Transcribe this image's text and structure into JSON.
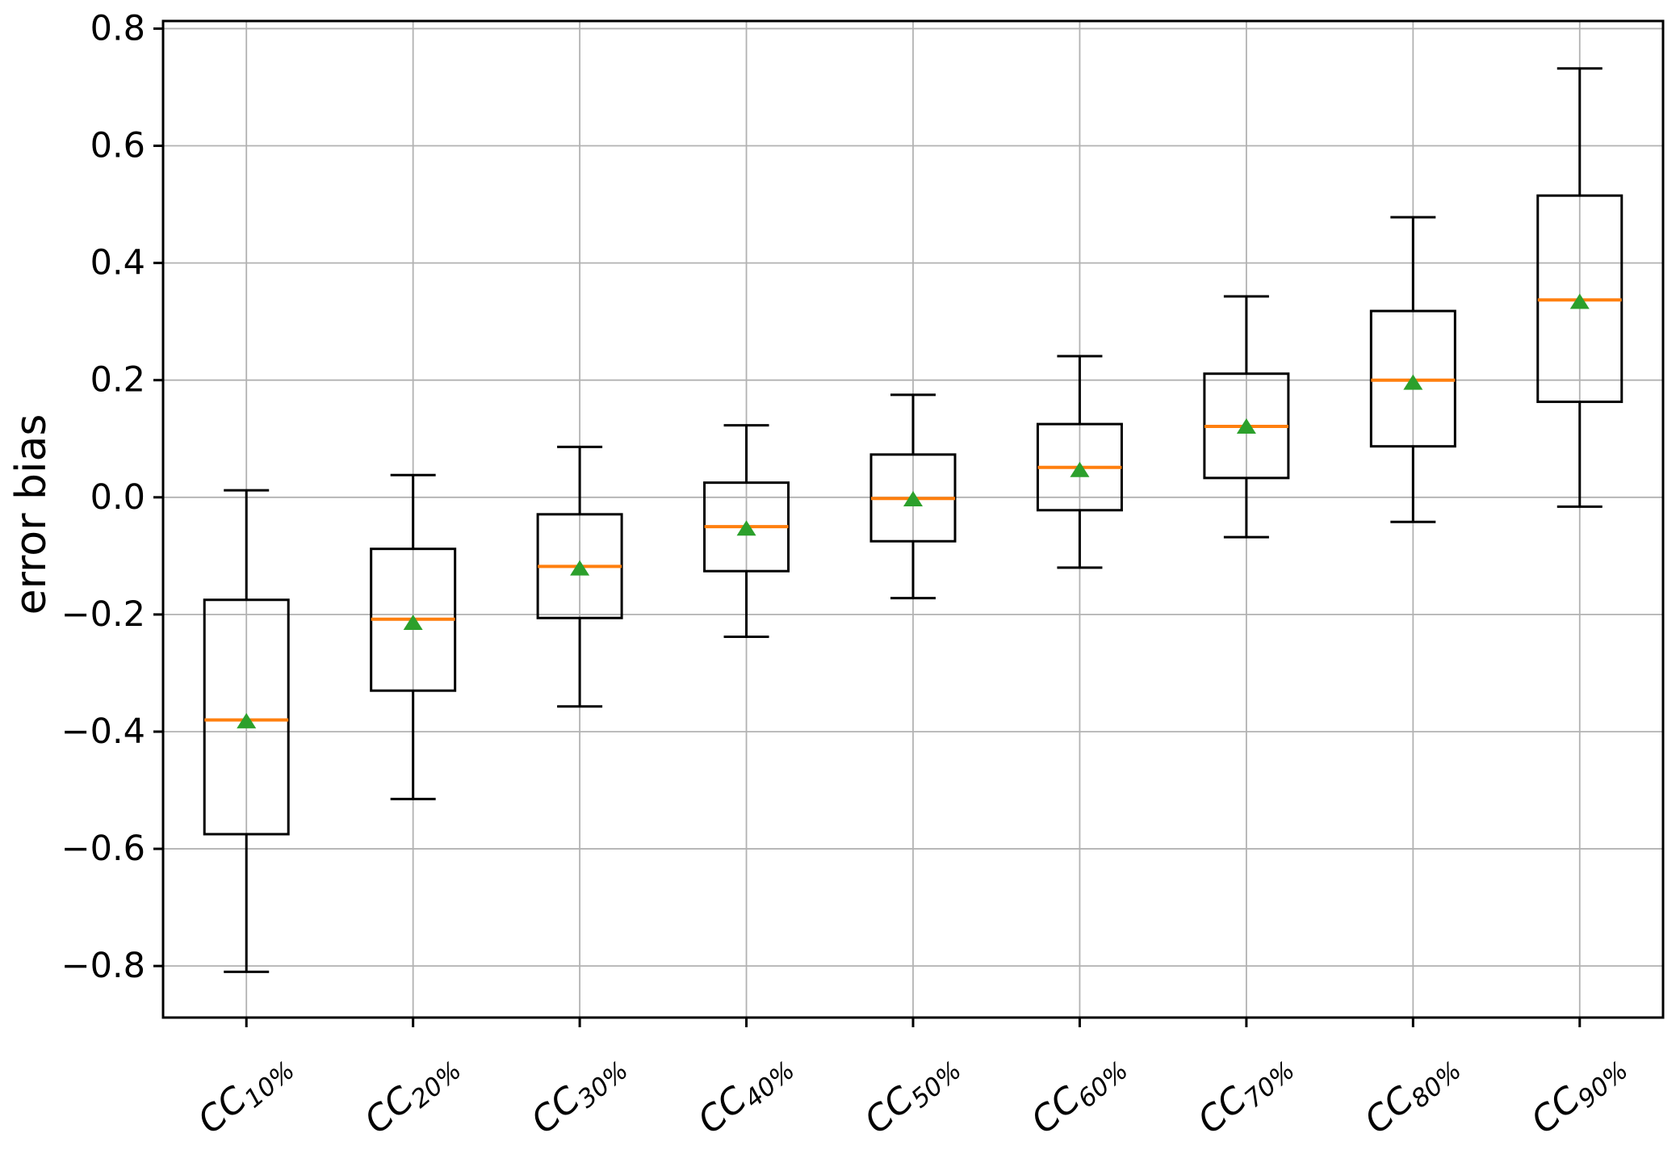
{
  "figure": {
    "background": "#ffffff"
  },
  "chart_data": {
    "type": "boxplot",
    "title": "",
    "xlabel": "",
    "ylabel": "error bias",
    "grid": true,
    "legend": "none",
    "ylim": [
      -0.888,
      0.813
    ],
    "yticks": [
      0.8,
      0.6,
      0.4,
      0.2,
      0.0,
      -0.2,
      -0.4,
      -0.6,
      -0.8
    ],
    "ytick_labels": [
      "0.8",
      "0.6",
      "0.4",
      "0.2",
      "0.0",
      "−0.2",
      "−0.4",
      "−0.6",
      "−0.8"
    ],
    "categories": [
      {
        "base": "CC",
        "sub": "10%"
      },
      {
        "base": "CC",
        "sub": "20%"
      },
      {
        "base": "CC",
        "sub": "30%"
      },
      {
        "base": "CC",
        "sub": "40%"
      },
      {
        "base": "CC",
        "sub": "50%"
      },
      {
        "base": "CC",
        "sub": "60%"
      },
      {
        "base": "CC",
        "sub": "70%"
      },
      {
        "base": "CC",
        "sub": "80%"
      },
      {
        "base": "CC",
        "sub": "90%"
      }
    ],
    "boxes": [
      {
        "whislo": -0.81,
        "q1": -0.575,
        "med": -0.38,
        "mean": -0.382,
        "q3": -0.175,
        "whishi": 0.012
      },
      {
        "whislo": -0.515,
        "q1": -0.33,
        "med": -0.208,
        "mean": -0.214,
        "q3": -0.088,
        "whishi": 0.038
      },
      {
        "whislo": -0.357,
        "q1": -0.206,
        "med": -0.118,
        "mean": -0.121,
        "q3": -0.029,
        "whishi": 0.086
      },
      {
        "whislo": -0.238,
        "q1": -0.126,
        "med": -0.05,
        "mean": -0.053,
        "q3": 0.025,
        "whishi": 0.123
      },
      {
        "whislo": -0.172,
        "q1": -0.075,
        "med": -0.002,
        "mean": -0.003,
        "q3": 0.073,
        "whishi": 0.175
      },
      {
        "whislo": -0.12,
        "q1": -0.022,
        "med": 0.051,
        "mean": 0.047,
        "q3": 0.125,
        "whishi": 0.241
      },
      {
        "whislo": -0.068,
        "q1": 0.033,
        "med": 0.121,
        "mean": 0.121,
        "q3": 0.211,
        "whishi": 0.343
      },
      {
        "whislo": -0.042,
        "q1": 0.087,
        "med": 0.2,
        "mean": 0.196,
        "q3": 0.318,
        "whishi": 0.478
      },
      {
        "whislo": -0.016,
        "q1": 0.163,
        "med": 0.337,
        "mean": 0.334,
        "q3": 0.515,
        "whishi": 0.732
      }
    ],
    "colors": {
      "box_edge": "#000000",
      "whisker": "#000000",
      "median": "#ff7f0e",
      "mean_marker": "#2ca02c",
      "grid": "#b2b2b2",
      "axis": "#000000",
      "tick_label": "#000000"
    }
  }
}
